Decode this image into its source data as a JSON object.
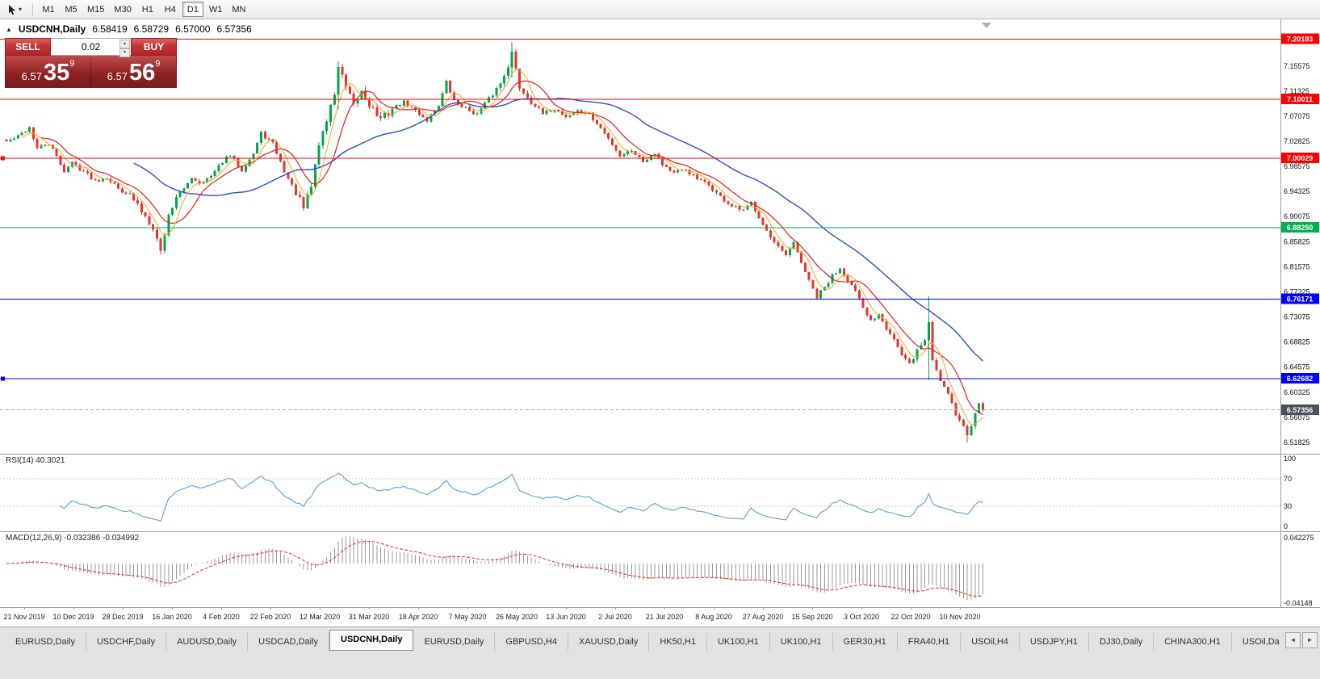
{
  "icons": {
    "caret_down": "▾",
    "collapse_up": "▲",
    "spin_up": "▴",
    "spin_down": "▾",
    "scroll_left": "◄",
    "scroll_right": "►"
  },
  "toolbar": {
    "timeframes": [
      {
        "label": "M1"
      },
      {
        "label": "M5"
      },
      {
        "label": "M15"
      },
      {
        "label": "M30"
      },
      {
        "label": "H1"
      },
      {
        "label": "H4"
      },
      {
        "label": "D1",
        "active": true
      },
      {
        "label": "W1"
      },
      {
        "label": "MN"
      }
    ]
  },
  "chart": {
    "header": {
      "symbol": "USDCNH,Daily",
      "open": "6.58419",
      "high": "6.58729",
      "low": "6.57000",
      "close": "6.57356"
    },
    "one_click": {
      "sell_label": "SELL",
      "buy_label": "BUY",
      "volume": "0.02",
      "sell_price_small": "6.57",
      "sell_price_big": "35",
      "sell_price_sup": "9",
      "buy_price_small": "6.57",
      "buy_price_big": "56",
      "buy_price_sup": "9"
    }
  },
  "chart_data": {
    "type": "candlestick",
    "symbol": "USDCNH",
    "timeframe": "Daily",
    "colors": {
      "up": "#00A650",
      "down": "#E5352B",
      "background": "#FFFFFF"
    },
    "y_axis": {
      "price_max": 7.2348,
      "price_min": 6.499,
      "ticks": [
        7.15575,
        7.11325,
        7.07075,
        7.02825,
        6.98575,
        6.94325,
        6.90075,
        6.85825,
        6.81575,
        6.77325,
        6.73075,
        6.68825,
        6.64575,
        6.60325,
        6.56075,
        6.51825
      ]
    },
    "levels": [
      {
        "value": 7.20193,
        "label": "7.20193",
        "color": "#FF0000"
      },
      {
        "value": 7.10011,
        "label": "7.10011",
        "color": "#FF0000"
      },
      {
        "value": 7.00029,
        "label": "7.00029",
        "color": "#FF0000",
        "marker": true
      },
      {
        "value": 6.8825,
        "label": "6.88250",
        "color": "#00B050"
      },
      {
        "value": 6.76171,
        "label": "6.76171",
        "color": "#0000FF"
      },
      {
        "value": 6.62682,
        "label": "6.62682",
        "color": "#0000FF",
        "marker": true
      }
    ],
    "current_price": {
      "value": 6.57356,
      "label": "6.57356",
      "color": "#49525C"
    },
    "x_axis": {
      "dates": [
        "21 Nov 2019",
        "10 Dec 2019",
        "28 Dec 2019",
        "16 Jan 2020",
        "4 Feb 2020",
        "22 Feb 2020",
        "12 Mar 2020",
        "31 Mar 2020",
        "18 Apr 2020",
        "7 May 2020",
        "26 May 2020",
        "13 Jun 2020",
        "2 Jul 2020",
        "21 Jul 2020",
        "8 Aug 2020",
        "27 Aug 2020",
        "15 Sep 2020",
        "3 Oct 2020",
        "22 Oct 2020",
        "10 Nov 2020"
      ]
    },
    "candles": {
      "count": 254,
      "seed": 42,
      "anchors": [
        [
          0,
          7.028
        ],
        [
          3,
          7.036
        ],
        [
          6,
          7.052
        ],
        [
          8,
          7.016
        ],
        [
          11,
          7.024
        ],
        [
          13,
          7.002
        ],
        [
          15,
          6.978
        ],
        [
          17,
          6.992
        ],
        [
          20,
          6.978
        ],
        [
          23,
          6.962
        ],
        [
          26,
          6.968
        ],
        [
          29,
          6.948
        ],
        [
          32,
          6.938
        ],
        [
          35,
          6.91
        ],
        [
          38,
          6.884
        ],
        [
          40,
          6.842
        ],
        [
          42,
          6.902
        ],
        [
          44,
          6.936
        ],
        [
          46,
          6.946
        ],
        [
          48,
          6.968
        ],
        [
          50,
          6.958
        ],
        [
          53,
          6.968
        ],
        [
          56,
          6.994
        ],
        [
          58,
          7.004
        ],
        [
          61,
          6.98
        ],
        [
          64,
          7.008
        ],
        [
          66,
          7.042
        ],
        [
          69,
          7.024
        ],
        [
          72,
          6.978
        ],
        [
          75,
          6.94
        ],
        [
          77,
          6.914
        ],
        [
          79,
          6.952
        ],
        [
          81,
          7.024
        ],
        [
          83,
          7.064
        ],
        [
          85,
          7.11
        ],
        [
          86,
          7.155
        ],
        [
          88,
          7.118
        ],
        [
          90,
          7.086
        ],
        [
          92,
          7.114
        ],
        [
          94,
          7.092
        ],
        [
          97,
          7.064
        ],
        [
          100,
          7.084
        ],
        [
          103,
          7.094
        ],
        [
          106,
          7.08
        ],
        [
          109,
          7.064
        ],
        [
          112,
          7.09
        ],
        [
          114,
          7.128
        ],
        [
          116,
          7.096
        ],
        [
          119,
          7.084
        ],
        [
          122,
          7.074
        ],
        [
          125,
          7.1
        ],
        [
          128,
          7.126
        ],
        [
          130,
          7.158
        ],
        [
          131,
          7.178
        ],
        [
          133,
          7.12
        ],
        [
          136,
          7.096
        ],
        [
          139,
          7.074
        ],
        [
          142,
          7.084
        ],
        [
          145,
          7.07
        ],
        [
          148,
          7.08
        ],
        [
          151,
          7.074
        ],
        [
          154,
          7.05
        ],
        [
          157,
          7.024
        ],
        [
          159,
          7.004
        ],
        [
          162,
          7.014
        ],
        [
          165,
          6.994
        ],
        [
          168,
          7.01
        ],
        [
          170,
          6.99
        ],
        [
          173,
          6.974
        ],
        [
          176,
          6.98
        ],
        [
          179,
          6.964
        ],
        [
          182,
          6.954
        ],
        [
          185,
          6.934
        ],
        [
          188,
          6.918
        ],
        [
          191,
          6.91
        ],
        [
          193,
          6.924
        ],
        [
          196,
          6.89
        ],
        [
          198,
          6.864
        ],
        [
          200,
          6.846
        ],
        [
          202,
          6.834
        ],
        [
          204,
          6.854
        ],
        [
          206,
          6.824
        ],
        [
          208,
          6.79
        ],
        [
          210,
          6.764
        ],
        [
          212,
          6.78
        ],
        [
          214,
          6.8
        ],
        [
          216,
          6.814
        ],
        [
          218,
          6.794
        ],
        [
          220,
          6.774
        ],
        [
          222,
          6.744
        ],
        [
          224,
          6.724
        ],
        [
          226,
          6.737
        ],
        [
          228,
          6.714
        ],
        [
          230,
          6.694
        ],
        [
          232,
          6.664
        ],
        [
          234,
          6.65
        ],
        [
          236,
          6.674
        ],
        [
          238,
          6.692
        ],
        [
          239,
          6.722
        ],
        [
          240,
          6.658
        ],
        [
          242,
          6.624
        ],
        [
          244,
          6.604
        ],
        [
          246,
          6.566
        ],
        [
          248,
          6.546
        ],
        [
          249,
          6.529
        ],
        [
          250,
          6.546
        ],
        [
          251,
          6.571
        ],
        [
          252,
          6.58419
        ],
        [
          253,
          6.57356
        ]
      ],
      "vol_zones": [
        [
          34,
          44,
          1.7
        ],
        [
          76,
          100,
          2.1
        ],
        [
          126,
          136,
          1.5
        ],
        [
          196,
          214,
          1.3
        ],
        [
          228,
          242,
          1.5
        ],
        [
          243,
          251,
          1.3
        ]
      ],
      "wick_overrides": [
        [
          40,
          6.866,
          6.836
        ],
        [
          86,
          7.164,
          7.082
        ],
        [
          131,
          7.1966,
          7.136
        ],
        [
          239,
          6.766,
          6.624
        ],
        [
          249,
          6.549,
          6.518
        ],
        [
          253,
          6.58729,
          6.57
        ]
      ]
    },
    "indicators": {
      "ma": [
        {
          "period": 34,
          "color": "#2B50C8",
          "width": 1.4
        },
        {
          "period": 10,
          "color": "#E02020",
          "width": 1.2
        },
        {
          "period": 5,
          "color": "#F2A51E",
          "width": 1
        }
      ],
      "rsi": {
        "label": "RSI(14) 40.3021",
        "period": 14,
        "value": 40.3021,
        "levels": [
          100,
          70,
          30,
          0
        ],
        "color": "#58A0DC"
      },
      "macd": {
        "label": "MACD(12,26,9) -0.032386 -0.034992",
        "fast": 12,
        "slow": 26,
        "signal": 9,
        "values": [
          -0.032386,
          -0.034992
        ],
        "axis_max": "0.042275",
        "axis_min": "-0.04148",
        "histogram_color": "#9B9B9B",
        "signal_color": "#E03030"
      }
    }
  },
  "bottom_tabs": {
    "tabs": [
      {
        "label": "EURUSD,Daily"
      },
      {
        "label": "USDCHF,Daily"
      },
      {
        "label": "AUDUSD,Daily"
      },
      {
        "label": "USDCAD,Daily"
      },
      {
        "label": "USDCNH,Daily",
        "active": true
      },
      {
        "label": "EURUSD,Daily"
      },
      {
        "label": "GBPUSD,H4"
      },
      {
        "label": "XAUUSD,Daily"
      },
      {
        "label": "HK50,H1"
      },
      {
        "label": "UK100,H1"
      },
      {
        "label": "UK100,H1"
      },
      {
        "label": "GER30,H1"
      },
      {
        "label": "FRA40,H1"
      },
      {
        "label": "USOil,H4"
      },
      {
        "label": "USDJPY,H1"
      },
      {
        "label": "DJ30,Daily"
      },
      {
        "label": "CHINA300,H1"
      },
      {
        "label": "USOil,Da"
      }
    ]
  }
}
